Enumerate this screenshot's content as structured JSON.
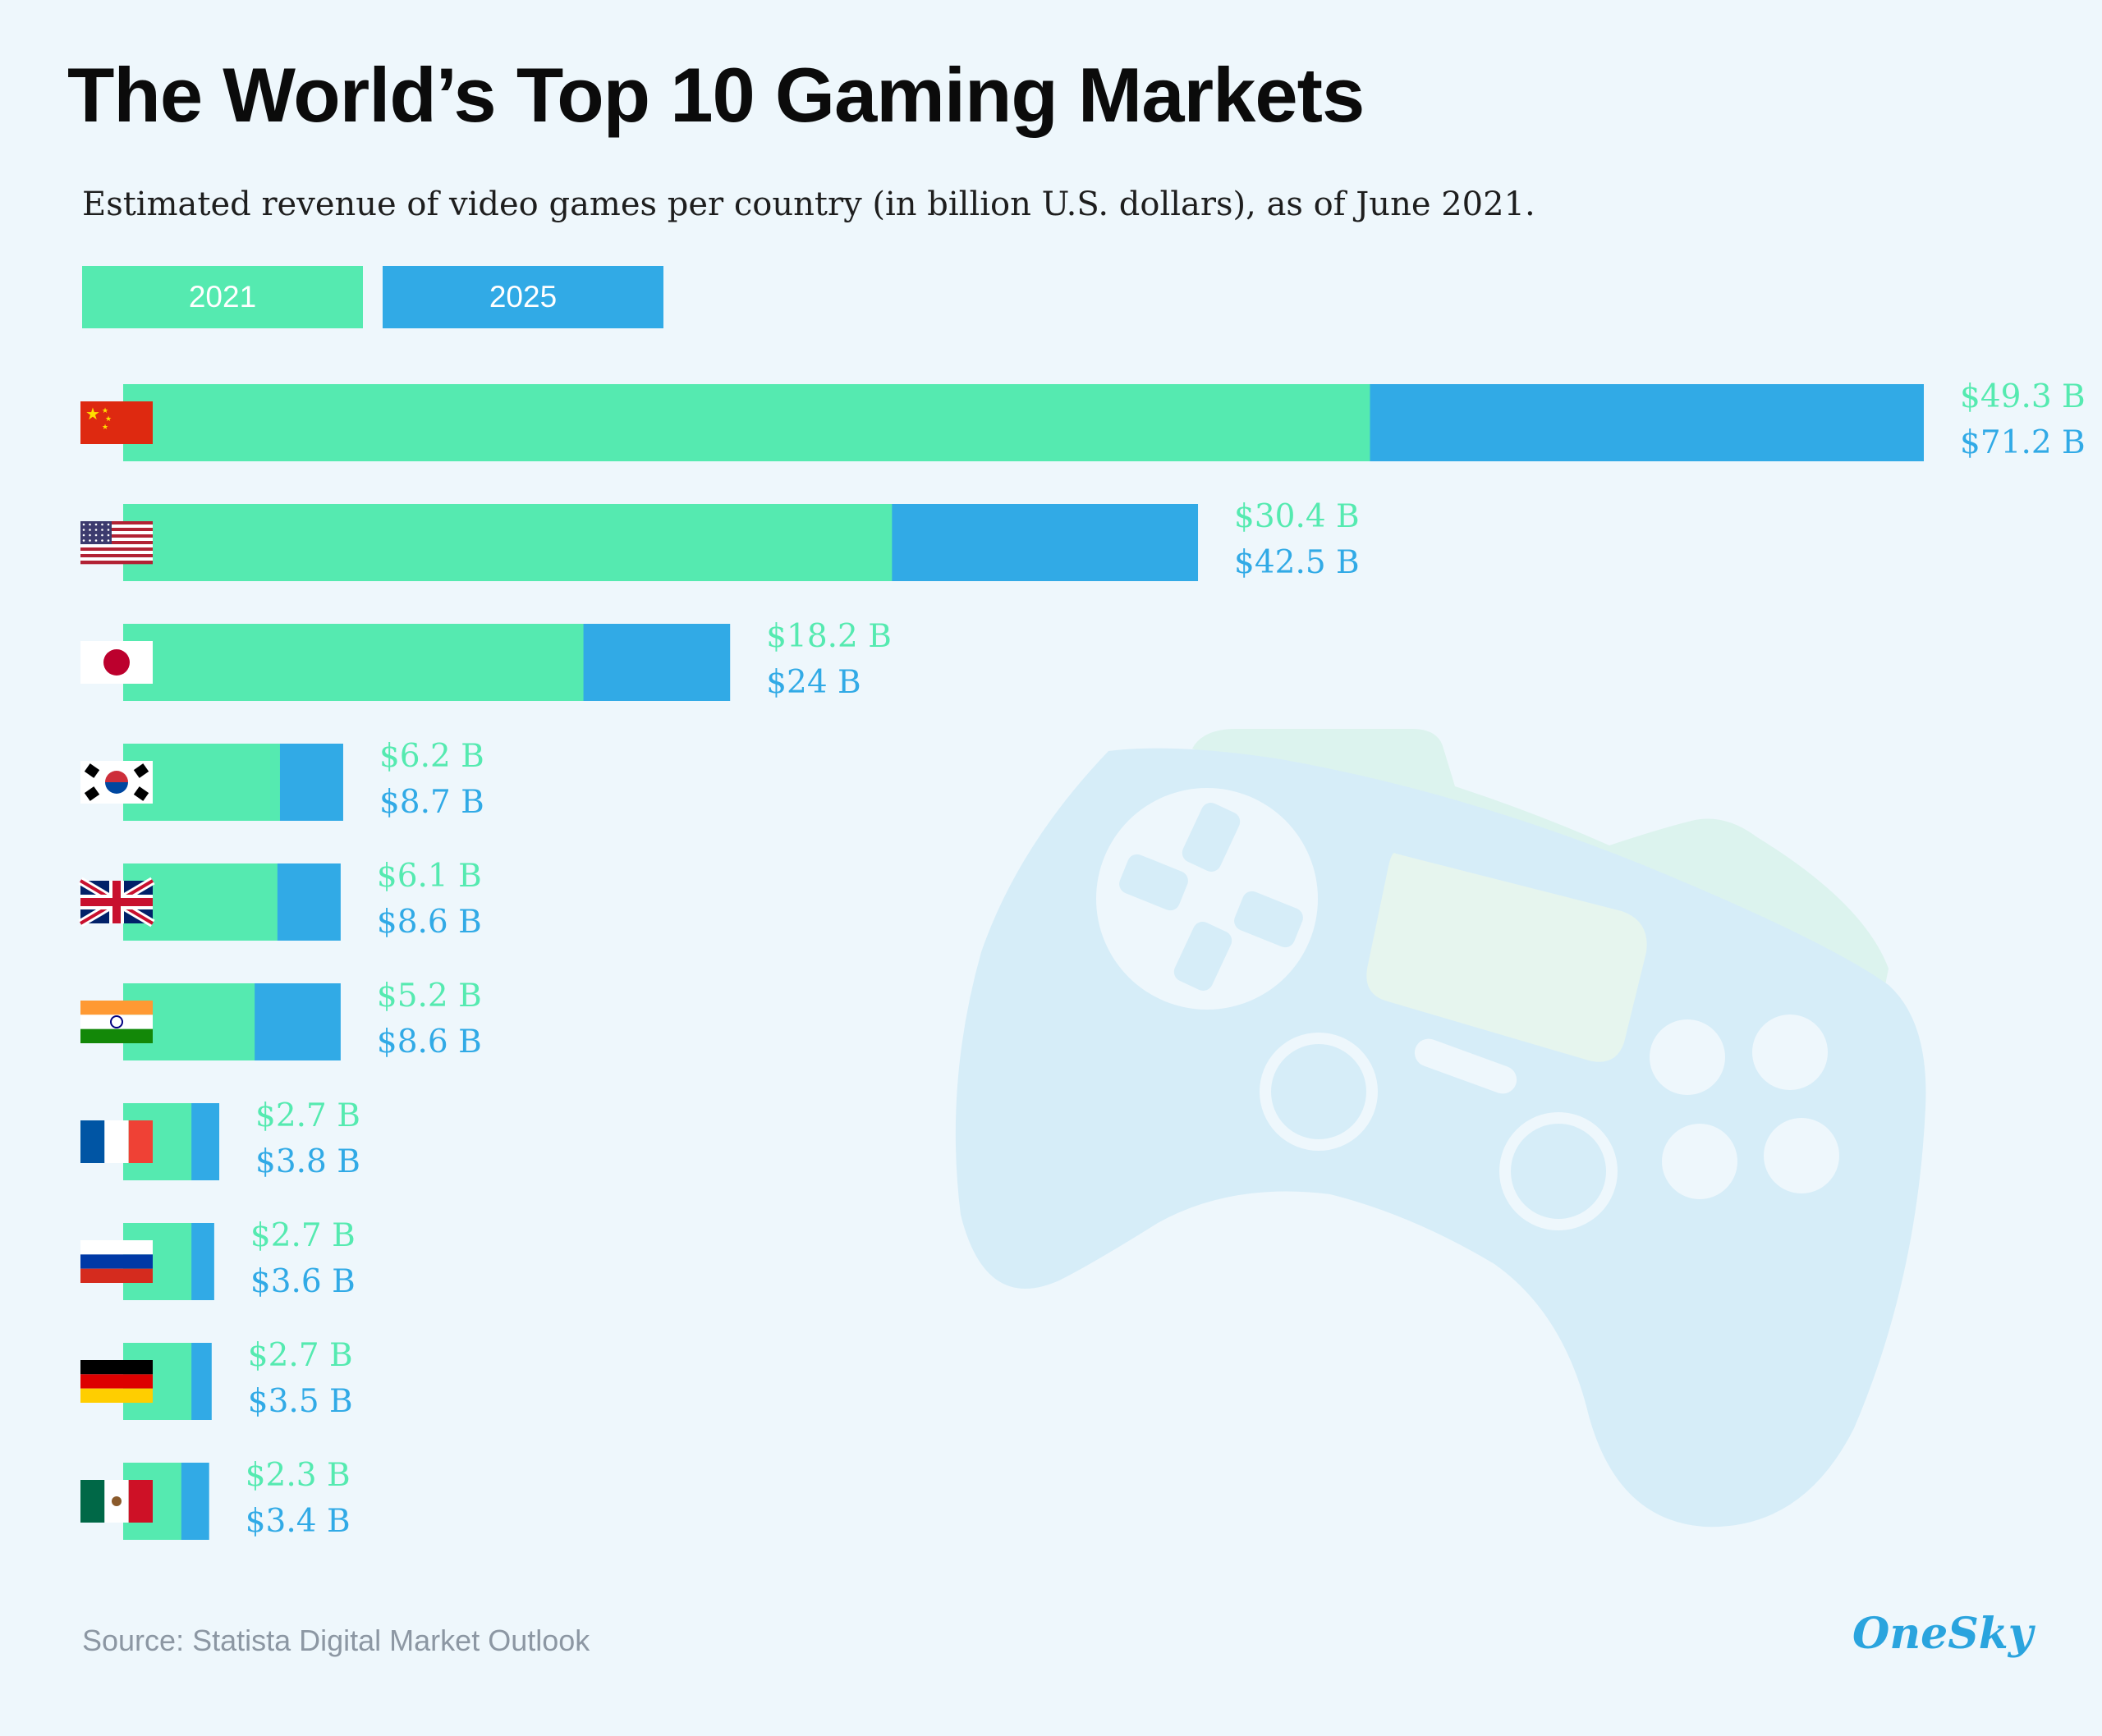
{
  "title": "The World’s Top 10 Gaming Markets",
  "subtitle": "Estimated revenue of video games per country (in billion U.S. dollars), as of June 2021.",
  "source": "Source: Statista Digital Market Outlook",
  "logo": "OneSky",
  "colors": {
    "series_2021": "#55eab0",
    "series_2025": "#31aae6",
    "background": "#eef7fc",
    "controller": "#d6edf8",
    "logo": "#2aa4de"
  },
  "chart_data": {
    "type": "bar",
    "orientation": "horizontal",
    "stacking": "overlay",
    "categories": [
      "China",
      "United States",
      "Japan",
      "South Korea",
      "United Kingdom",
      "India",
      "France",
      "Russia",
      "Germany",
      "Mexico"
    ],
    "flags": [
      "flag-china-icon",
      "flag-usa-icon",
      "flag-japan-icon",
      "flag-south-korea-icon",
      "flag-uk-icon",
      "flag-india-icon",
      "flag-france-icon",
      "flag-russia-icon",
      "flag-germany-icon",
      "flag-mexico-icon"
    ],
    "series": [
      {
        "name": "2021",
        "values": [
          49.3,
          30.4,
          18.2,
          6.2,
          6.1,
          5.2,
          2.7,
          2.7,
          2.7,
          2.3
        ],
        "labels": [
          "$49.3 B",
          "$30.4 B",
          "$18.2 B",
          "$6.2 B",
          "$6.1 B",
          "$5.2 B",
          "$2.7 B",
          "$2.7 B",
          "$2.7 B",
          "$2.3 B"
        ]
      },
      {
        "name": "2025",
        "values": [
          71.2,
          42.5,
          24,
          8.7,
          8.6,
          8.6,
          3.8,
          3.6,
          3.5,
          3.4
        ],
        "labels": [
          "$71.2 B",
          "$42.5 B",
          "$24 B",
          "$8.7 B",
          "$8.6 B",
          "$8.6 B",
          "$3.8 B",
          "$3.6 B",
          "$3.5 B",
          "$3.4 B"
        ]
      }
    ],
    "xlim": [
      0,
      71.2
    ],
    "grid": false,
    "legend_position": "top-left"
  }
}
